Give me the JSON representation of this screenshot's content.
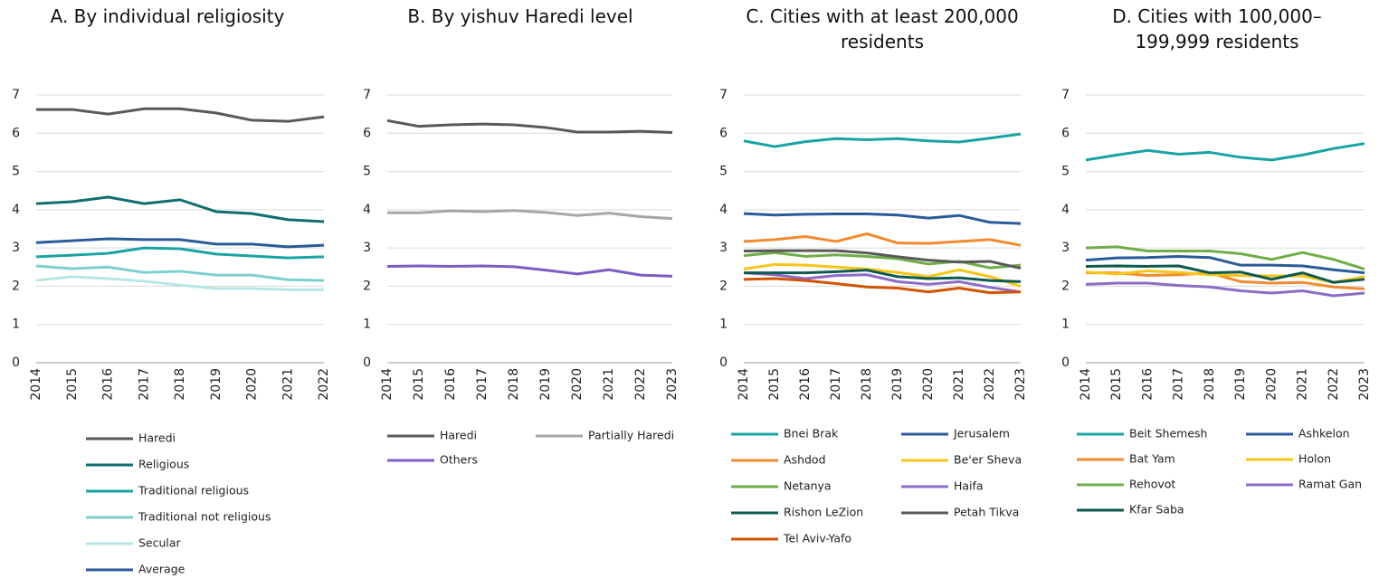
{
  "chart_data": [
    {
      "type": "line",
      "title": "A. By individual religiosity",
      "categories": [
        "2014",
        "2015",
        "2016",
        "2017",
        "2018",
        "2019",
        "2020",
        "2021",
        "2022"
      ],
      "ylim": [
        0,
        7
      ],
      "yticks": [
        0,
        1,
        2,
        3,
        4,
        5,
        6,
        7
      ],
      "grid": true,
      "series": [
        {
          "name": "Haredi",
          "color": "#595959",
          "values": [
            6.62,
            6.62,
            6.5,
            6.64,
            6.64,
            6.53,
            6.34,
            6.31,
            6.43
          ]
        },
        {
          "name": "Religious",
          "color": "#0f6e6e",
          "values": [
            4.16,
            4.21,
            4.33,
            4.16,
            4.26,
            3.95,
            3.9,
            3.74,
            3.69
          ]
        },
        {
          "name": "Traditional religious",
          "color": "#1aa3a3",
          "values": [
            2.77,
            2.81,
            2.86,
            3.0,
            2.98,
            2.84,
            2.79,
            2.74,
            2.77
          ]
        },
        {
          "name": "Traditional not religious",
          "color": "#7ecfcf",
          "values": [
            2.53,
            2.46,
            2.5,
            2.36,
            2.39,
            2.29,
            2.29,
            2.17,
            2.15
          ]
        },
        {
          "name": "Secular",
          "color": "#b8e6e6",
          "values": [
            2.15,
            2.25,
            2.2,
            2.13,
            2.03,
            1.94,
            1.94,
            1.91,
            1.91
          ]
        },
        {
          "name": "Average",
          "color": "#2b5a9a",
          "values": [
            3.14,
            3.19,
            3.24,
            3.22,
            3.22,
            3.1,
            3.1,
            3.03,
            3.07
          ]
        }
      ]
    },
    {
      "type": "line",
      "title": "B. By yishuv Haredi level",
      "categories": [
        "2014",
        "2015",
        "2016",
        "2017",
        "2018",
        "2019",
        "2020",
        "2021",
        "2022",
        "2023"
      ],
      "ylim": [
        0,
        7
      ],
      "yticks": [
        0,
        1,
        2,
        3,
        4,
        5,
        6,
        7
      ],
      "grid": true,
      "series": [
        {
          "name": "Haredi",
          "color": "#595959",
          "values": [
            6.33,
            6.18,
            6.22,
            6.24,
            6.22,
            6.15,
            6.03,
            6.03,
            6.05,
            6.02
          ]
        },
        {
          "name": "Partially Haredi",
          "color": "#a6a6a6",
          "values": [
            3.92,
            3.92,
            3.97,
            3.95,
            3.98,
            3.93,
            3.85,
            3.91,
            3.82,
            3.77
          ]
        },
        {
          "name": "Others",
          "color": "#7b5cc4",
          "values": [
            2.52,
            2.53,
            2.52,
            2.53,
            2.51,
            2.42,
            2.32,
            2.43,
            2.29,
            2.26
          ]
        }
      ]
    },
    {
      "type": "line",
      "title": "C. Cities with at least 200,000 residents",
      "categories": [
        "2014",
        "2015",
        "2016",
        "2017",
        "2018",
        "2019",
        "2020",
        "2021",
        "2022",
        "2023"
      ],
      "ylim": [
        0,
        7
      ],
      "yticks": [
        0,
        1,
        2,
        3,
        4,
        5,
        6,
        7
      ],
      "grid": true,
      "series": [
        {
          "name": "Bnei Brak",
          "color": "#1aa3a3",
          "values": [
            5.8,
            5.65,
            5.78,
            5.86,
            5.83,
            5.86,
            5.8,
            5.77,
            5.87,
            5.98
          ]
        },
        {
          "name": "Jerusalem",
          "color": "#2b5a9a",
          "values": [
            3.9,
            3.86,
            3.88,
            3.89,
            3.89,
            3.86,
            3.78,
            3.85,
            3.67,
            3.64
          ]
        },
        {
          "name": "Ashdod",
          "color": "#f28a30",
          "values": [
            3.17,
            3.22,
            3.3,
            3.17,
            3.37,
            3.13,
            3.12,
            3.17,
            3.22,
            3.07
          ]
        },
        {
          "name": "Be'er Sheva",
          "color": "#f5c518",
          "values": [
            2.45,
            2.57,
            2.55,
            2.5,
            2.45,
            2.36,
            2.25,
            2.43,
            2.25,
            2.0
          ]
        },
        {
          "name": "Netanya",
          "color": "#70ad47",
          "values": [
            2.8,
            2.88,
            2.78,
            2.82,
            2.78,
            2.72,
            2.58,
            2.65,
            2.48,
            2.55
          ]
        },
        {
          "name": "Haifa",
          "color": "#8c6cc8",
          "values": [
            2.35,
            2.3,
            2.2,
            2.28,
            2.3,
            2.12,
            2.05,
            2.12,
            1.97,
            1.85
          ]
        },
        {
          "name": "Rishon LeZion",
          "color": "#0f5a50",
          "values": [
            2.35,
            2.35,
            2.35,
            2.38,
            2.42,
            2.25,
            2.2,
            2.22,
            2.15,
            2.12
          ]
        },
        {
          "name": "Petah Tikva",
          "color": "#595959",
          "values": [
            2.92,
            2.93,
            2.93,
            2.93,
            2.87,
            2.77,
            2.68,
            2.63,
            2.65,
            2.47
          ]
        },
        {
          "name": "Tel Aviv-Yafo",
          "color": "#d35400",
          "values": [
            2.18,
            2.2,
            2.15,
            2.07,
            1.98,
            1.95,
            1.85,
            1.95,
            1.83,
            1.85
          ]
        }
      ]
    },
    {
      "type": "line",
      "title": "D. Cities with 100,000–199,999 residents",
      "categories": [
        "2014",
        "2015",
        "2016",
        "2017",
        "2018",
        "2019",
        "2020",
        "2021",
        "2022",
        "2023"
      ],
      "ylim": [
        0,
        7
      ],
      "yticks": [
        0,
        1,
        2,
        3,
        4,
        5,
        6,
        7
      ],
      "grid": true,
      "series": [
        {
          "name": "Beit Shemesh",
          "color": "#1aa3a3",
          "values": [
            5.3,
            5.43,
            5.55,
            5.45,
            5.5,
            5.37,
            5.3,
            5.43,
            5.6,
            5.73
          ]
        },
        {
          "name": "Ashkelon",
          "color": "#2b5a9a",
          "values": [
            2.68,
            2.74,
            2.75,
            2.78,
            2.75,
            2.55,
            2.55,
            2.53,
            2.43,
            2.35
          ]
        },
        {
          "name": "Bat Yam",
          "color": "#f28a30",
          "values": [
            2.35,
            2.35,
            2.28,
            2.3,
            2.35,
            2.12,
            2.08,
            2.1,
            1.98,
            1.93
          ]
        },
        {
          "name": "Holon",
          "color": "#f5c518",
          "values": [
            2.37,
            2.32,
            2.4,
            2.36,
            2.3,
            2.28,
            2.27,
            2.27,
            2.1,
            2.25
          ]
        },
        {
          "name": "Rehovot",
          "color": "#70ad47",
          "values": [
            3.0,
            3.03,
            2.92,
            2.92,
            2.92,
            2.85,
            2.7,
            2.88,
            2.7,
            2.45
          ]
        },
        {
          "name": "Ramat Gan",
          "color": "#8c6cc8",
          "values": [
            2.05,
            2.08,
            2.08,
            2.02,
            1.98,
            1.88,
            1.82,
            1.88,
            1.75,
            1.82
          ]
        },
        {
          "name": "Kfar Saba",
          "color": "#0f5a50",
          "values": [
            2.52,
            2.53,
            2.52,
            2.53,
            2.35,
            2.37,
            2.18,
            2.35,
            2.1,
            2.18
          ]
        }
      ]
    }
  ]
}
